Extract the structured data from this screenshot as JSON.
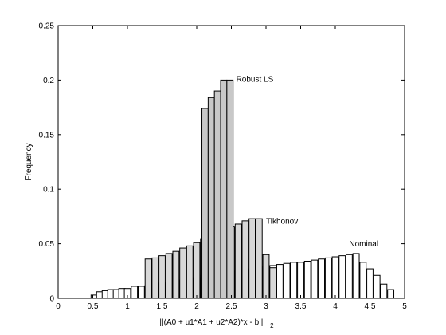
{
  "chart_data": {
    "type": "bar",
    "title": "",
    "xlabel": "||(A0 + u1*A1 + u2*A2)*x - b||",
    "xlabel_subscript": "2",
    "ylabel": "Frequency",
    "xlim": [
      0,
      5
    ],
    "ylim": [
      0,
      0.25
    ],
    "xticks": [
      0,
      0.5,
      1,
      1.5,
      2,
      2.5,
      3,
      3.5,
      4,
      4.5,
      5
    ],
    "xtick_labels": [
      "0",
      "0.5",
      "1",
      "1.5",
      "2",
      "2.5",
      "3",
      "3.5",
      "4",
      "4.5",
      "5"
    ],
    "yticks": [
      0,
      0.05,
      0.1,
      0.15,
      0.2,
      0.25
    ],
    "ytick_labels": [
      "0",
      "0.05",
      "0.1",
      "0.15",
      "0.2",
      "0.25"
    ],
    "grid": false,
    "bar_width": 0.09,
    "series": [
      {
        "name": "Nominal",
        "fill": "#ffffff",
        "x": [
          0.52,
          0.6,
          0.68,
          0.76,
          0.84,
          0.92,
          1.0,
          1.1,
          1.2,
          1.3,
          1.4,
          1.5,
          1.6,
          1.7,
          1.8,
          1.9,
          2.0,
          2.1,
          2.2,
          2.3,
          2.4,
          2.5,
          2.6,
          2.7,
          2.8,
          2.9,
          3.0,
          3.1,
          3.2,
          3.3,
          3.4,
          3.5,
          3.6,
          3.7,
          3.8,
          3.9,
          4.0,
          4.1,
          4.2,
          4.3,
          4.4,
          4.5,
          4.6,
          4.7,
          4.8
        ],
        "values": [
          0.003,
          0.006,
          0.007,
          0.008,
          0.008,
          0.009,
          0.009,
          0.011,
          0.011,
          0.012,
          0.013,
          0.014,
          0.015,
          0.016,
          0.017,
          0.018,
          0.019,
          0.021,
          0.022,
          0.023,
          0.024,
          0.025,
          0.025,
          0.026,
          0.027,
          0.028,
          0.029,
          0.03,
          0.031,
          0.032,
          0.033,
          0.033,
          0.034,
          0.035,
          0.036,
          0.037,
          0.038,
          0.039,
          0.04,
          0.041,
          0.033,
          0.027,
          0.021,
          0.013,
          0.008
        ]
      },
      {
        "name": "Tikhonov",
        "fill": "#d8d8d8",
        "x": [
          1.3,
          1.4,
          1.5,
          1.6,
          1.7,
          1.8,
          1.9,
          2.0,
          2.1,
          2.2,
          2.3,
          2.4,
          2.5,
          2.6,
          2.7,
          2.8,
          2.9,
          3.0,
          3.1
        ],
        "values": [
          0.036,
          0.037,
          0.039,
          0.041,
          0.043,
          0.046,
          0.048,
          0.051,
          0.054,
          0.057,
          0.06,
          0.063,
          0.066,
          0.068,
          0.071,
          0.073,
          0.073,
          0.04,
          0.028
        ]
      },
      {
        "name": "Robust LS",
        "fill": "#c8c8c8",
        "x": [
          2.12,
          2.21,
          2.3,
          2.39,
          2.48
        ],
        "values": [
          0.174,
          0.184,
          0.19,
          0.2,
          0.2
        ]
      }
    ],
    "annotations": [
      {
        "text": "Robust LS",
        "x": 2.57,
        "y": 0.201
      },
      {
        "text": "Tikhonov",
        "x": 3.0,
        "y": 0.071
      },
      {
        "text": "Nominal",
        "x": 4.2,
        "y": 0.05
      }
    ]
  }
}
